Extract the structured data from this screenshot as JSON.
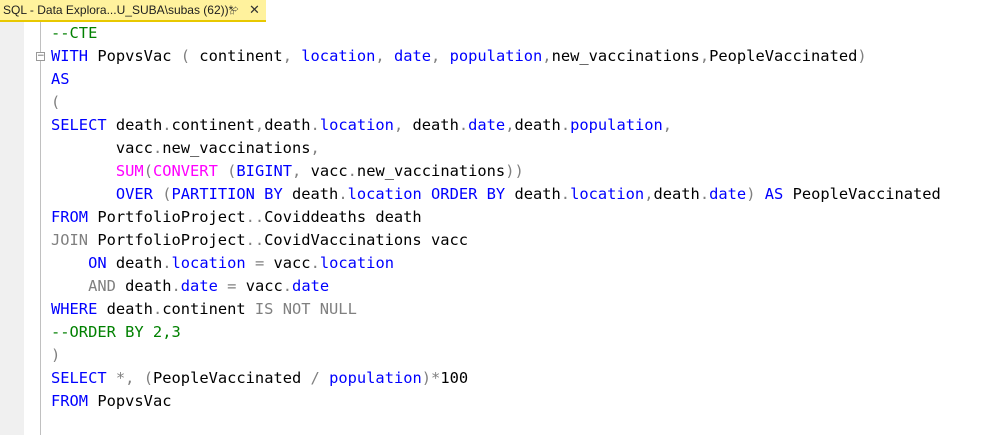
{
  "tab": {
    "title": "SQL - Data Explora...U_SUBA\\subas (62))*",
    "pin_icon": "pin-icon",
    "close_icon": "close-icon"
  },
  "colors": {
    "tab_background": "#fff29d",
    "keyword": "#0000ff",
    "function": "#ff00ff",
    "operator": "#808080",
    "comment": "#008000",
    "identifier": "#000000"
  },
  "code": {
    "l1": {
      "c1": "--CTE"
    },
    "l2": {
      "k1": "WITH",
      "t1": " PopvsVac ",
      "g1": "(",
      "t2": " continent",
      "g2": ",",
      "s3": " ",
      "k2": "location",
      "g3": ",",
      "s4": " ",
      "k3": "date",
      "g4": ",",
      "s5": " ",
      "k4": "population",
      "g5": ",",
      "t3": "new_vaccinations",
      "g6": ",",
      "t4": "PeopleVaccinated",
      "g7": ")"
    },
    "l3": {
      "k1": "AS"
    },
    "l4": {
      "g1": "("
    },
    "l5": {
      "k1": "SELECT",
      "t1": " death",
      "g1": ".",
      "t2": "continent",
      "g2": ",",
      "t3": "death",
      "g3": ".",
      "k2": "location",
      "g4": ",",
      "t4": " death",
      "g5": ".",
      "k3": "date",
      "g6": ",",
      "t5": "death",
      "g7": ".",
      "k4": "population",
      "g8": ","
    },
    "l6": {
      "t1": "       vacc",
      "g1": ".",
      "t2": "new_vaccinations",
      "g2": ","
    },
    "l7": {
      "s1": "       ",
      "f1": "SUM",
      "g1": "(",
      "f2": "CONVERT",
      "s2": " ",
      "g2": "(",
      "k1": "BIGINT",
      "g3": ",",
      "t1": " vacc",
      "g4": ".",
      "t2": "new_vaccinations",
      "g5": "))"
    },
    "l8": {
      "s1": "       ",
      "k1": "OVER",
      "s2": " ",
      "g1": "(",
      "k2": "PARTITION BY",
      "t1": " death",
      "g2": ".",
      "k3": "location",
      "s3": " ",
      "k4": "ORDER BY",
      "t2": " death",
      "g3": ".",
      "k5": "location",
      "g4": ",",
      "t3": "death",
      "g5": ".",
      "k6": "date",
      "g6": ")",
      "s4": " ",
      "k7": "AS",
      "t4": " PeopleVaccinated"
    },
    "l9": {
      "k1": "FROM",
      "t1": " PortfolioProject",
      "g1": "..",
      "t2": "Coviddeaths death"
    },
    "l10": {
      "g1": "JOIN",
      "t1": " PortfolioProject",
      "g2": "..",
      "t2": "CovidVaccinations vacc"
    },
    "l11": {
      "s1": "    ",
      "k1": "ON",
      "t1": " death",
      "g1": ".",
      "k2": "location",
      "s2": " ",
      "g2": "=",
      "t2": " vacc",
      "g3": ".",
      "k3": "location"
    },
    "l12": {
      "s1": "    ",
      "g1": "AND",
      "t1": " death",
      "g2": ".",
      "k1": "date",
      "s2": " ",
      "g3": "=",
      "t2": " vacc",
      "g4": ".",
      "k2": "date"
    },
    "l13": {
      "k1": "WHERE",
      "t1": " death",
      "g1": ".",
      "t2": "continent ",
      "g2": "IS NOT NULL"
    },
    "l14": {
      "c1": "--ORDER BY 2,3"
    },
    "l15": {
      "g1": ")"
    },
    "l16": {
      "k1": "SELECT",
      "s1": " ",
      "g1": "*,",
      "s2": " ",
      "g2": "(",
      "t1": "PeopleVaccinated ",
      "g3": "/",
      "s3": " ",
      "k2": "population",
      "g4": ")*",
      "t2": "100"
    },
    "l17": {
      "k1": "FROM",
      "t1": " PopvsVac"
    }
  }
}
